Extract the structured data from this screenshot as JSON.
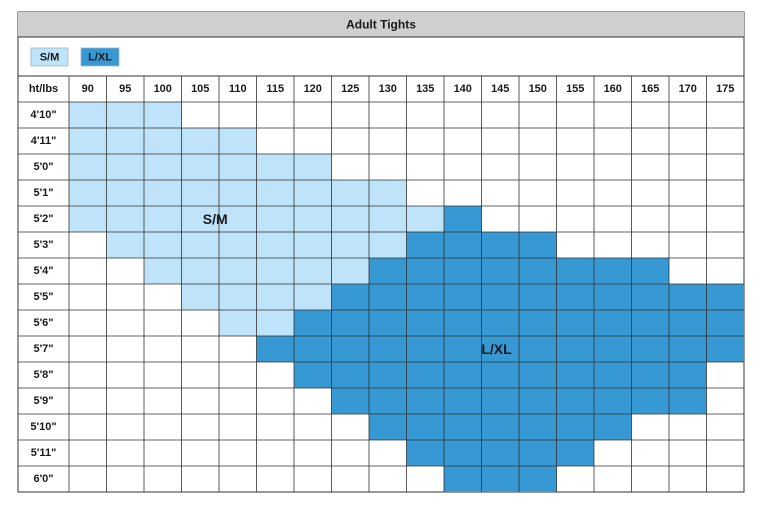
{
  "chart_data": {
    "type": "heatmap",
    "title": "Adult Tights",
    "corner_label": "ht/lbs",
    "legend": [
      {
        "label": "S/M",
        "color": "#bfe4f9"
      },
      {
        "label": "L/XL",
        "color": "#3699d4"
      }
    ],
    "x": [
      "90",
      "95",
      "100",
      "105",
      "110",
      "115",
      "120",
      "125",
      "130",
      "135",
      "140",
      "145",
      "150",
      "155",
      "160",
      "165",
      "170",
      "175"
    ],
    "y": [
      "4'10\"",
      "4'11\"",
      "5'0\"",
      "5'1\"",
      "5'2\"",
      "5'3\"",
      "5'4\"",
      "5'5\"",
      "5'6\"",
      "5'7\"",
      "5'8\"",
      "5'9\"",
      "5'10\"",
      "5'11\"",
      "6'0\""
    ],
    "sizes": [
      "SSS...............",
      "SSSSS.............",
      "SSSSSSS...........",
      "SSSSSSSSS.........",
      "SSSSSSSSSSL.......",
      ".SSSSSSSSLLLL.....",
      "..SSSSSSLLLLLLLL..",
      "...SSSSLLLLLLLLLLL",
      "....SSLLLLLLLLLLLL",
      ".....LLLLLLLLLLLLL",
      "......LLLLLLLLLLL.",
      ".......LLLLLLLLLL.",
      "........LLLLLLL...",
      ".........LLLLL....",
      "..........LLL....."
    ],
    "size_key": {
      "S": "S/M",
      "L": "L/XL"
    },
    "area_labels": [
      {
        "label": "S/M",
        "row": 4,
        "col": 3.9
      },
      {
        "label": "L/XL",
        "row": 9,
        "col": 11.4
      }
    ],
    "colors": {
      "header_bg": "#cfcfcf",
      "grid": "#333333",
      "empty": "#ffffff"
    }
  }
}
